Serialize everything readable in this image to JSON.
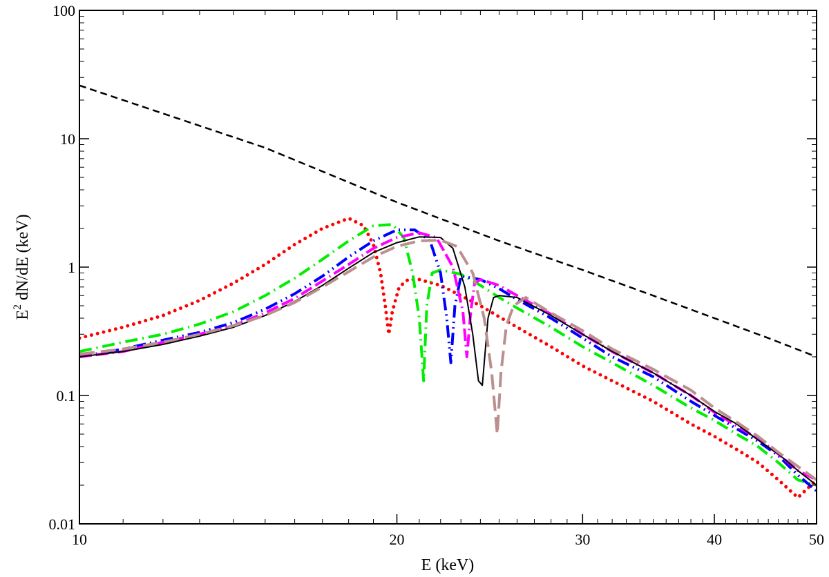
{
  "chart_data": {
    "type": "line",
    "title": "",
    "xlabel": "E (keV)",
    "ylabel_prefix": "E",
    "ylabel_sup": "2",
    "ylabel_suffix": " dN/dE (keV)",
    "xscale": "log",
    "yscale": "log",
    "xlim": [
      10,
      50
    ],
    "ylim": [
      0.01,
      100
    ],
    "xticks": [
      10,
      20,
      30,
      40,
      50
    ],
    "xtick_labels": [
      "10",
      "20",
      "30",
      "40",
      "50"
    ],
    "yticks": [
      0.01,
      0.1,
      1,
      10,
      100
    ],
    "ytick_labels": [
      "0.01",
      "0.1",
      "1",
      "10",
      "100"
    ],
    "legend": "none",
    "grid": false,
    "series": [
      {
        "name": "continuum",
        "color": "#000000",
        "style": "dashed",
        "x": [
          10,
          15,
          20,
          25,
          30,
          35,
          40,
          45,
          50
        ],
        "y": [
          26,
          8.5,
          3.2,
          1.6,
          0.95,
          0.6,
          0.4,
          0.28,
          0.2
        ]
      },
      {
        "name": "red dotted",
        "color": "#ff0000",
        "style": "dotted",
        "x": [
          10,
          11,
          12,
          13,
          14,
          15,
          16,
          17,
          18,
          18.6,
          19.0,
          19.3,
          19.5,
          19.65,
          19.8,
          20.1,
          20.5,
          21,
          22,
          23,
          24,
          25,
          26,
          28,
          30,
          32,
          35,
          38,
          40,
          42,
          44,
          46,
          48,
          50
        ],
        "y": [
          0.28,
          0.34,
          0.42,
          0.55,
          0.75,
          1.05,
          1.5,
          2.0,
          2.4,
          2.1,
          1.5,
          0.9,
          0.5,
          0.3,
          0.45,
          0.7,
          0.8,
          0.8,
          0.72,
          0.6,
          0.5,
          0.41,
          0.34,
          0.24,
          0.17,
          0.13,
          0.09,
          0.06,
          0.048,
          0.038,
          0.03,
          0.022,
          0.016,
          0.022
        ]
      },
      {
        "name": "green dash-dot",
        "color": "#00ee00",
        "style": "dashdot",
        "x": [
          10,
          11,
          12,
          13,
          14,
          15,
          16,
          17,
          18,
          19,
          19.8,
          20.3,
          20.7,
          21.0,
          21.2,
          21.35,
          21.6,
          22,
          23,
          24,
          25,
          26,
          28,
          30,
          32,
          35,
          38,
          40,
          42,
          44,
          46,
          48,
          50
        ],
        "y": [
          0.22,
          0.26,
          0.3,
          0.36,
          0.45,
          0.6,
          0.82,
          1.15,
          1.6,
          2.1,
          2.15,
          1.7,
          0.9,
          0.4,
          0.13,
          0.5,
          0.9,
          0.95,
          0.88,
          0.72,
          0.58,
          0.48,
          0.34,
          0.24,
          0.18,
          0.12,
          0.08,
          0.064,
          0.05,
          0.04,
          0.03,
          0.022,
          0.02
        ]
      },
      {
        "name": "blue dash-dot-dot",
        "color": "#0000ff",
        "style": "dashdotdot",
        "x": [
          10,
          11,
          12,
          13,
          14,
          15,
          16,
          17,
          18,
          19,
          20,
          20.8,
          21.5,
          22.0,
          22.3,
          22.5,
          22.7,
          23,
          24,
          25,
          26,
          28,
          30,
          32,
          35,
          38,
          40,
          42,
          44,
          46,
          48,
          50
        ],
        "y": [
          0.2,
          0.23,
          0.27,
          0.31,
          0.37,
          0.47,
          0.62,
          0.85,
          1.2,
          1.6,
          1.95,
          1.95,
          1.6,
          0.9,
          0.4,
          0.18,
          0.5,
          0.85,
          0.8,
          0.68,
          0.56,
          0.4,
          0.28,
          0.2,
          0.14,
          0.09,
          0.07,
          0.055,
          0.044,
          0.034,
          0.024,
          0.018
        ]
      },
      {
        "name": "magenta dash-dash-dot",
        "color": "#ff00ff",
        "style": "dashdashdot",
        "x": [
          10,
          11,
          12,
          13,
          14,
          15,
          16,
          17,
          18,
          19,
          20,
          21,
          21.8,
          22.6,
          23.1,
          23.3,
          23.5,
          23.7,
          24,
          25,
          26,
          28,
          30,
          32,
          35,
          38,
          40,
          42,
          44,
          46,
          48,
          50
        ],
        "y": [
          0.2,
          0.22,
          0.26,
          0.3,
          0.35,
          0.44,
          0.57,
          0.78,
          1.05,
          1.4,
          1.7,
          1.85,
          1.7,
          1.0,
          0.45,
          0.2,
          0.45,
          0.75,
          0.8,
          0.72,
          0.6,
          0.43,
          0.3,
          0.22,
          0.15,
          0.1,
          0.074,
          0.058,
          0.046,
          0.035,
          0.026,
          0.022
        ]
      },
      {
        "name": "black solid",
        "color": "#000000",
        "style": "solid",
        "x": [
          10,
          11,
          12,
          13,
          14,
          15,
          16,
          17,
          18,
          19,
          20,
          21,
          22,
          22.6,
          23.2,
          23.6,
          23.9,
          24.1,
          24.4,
          24.7,
          25,
          26,
          28,
          30,
          32,
          35,
          38,
          40,
          42,
          44,
          46,
          48,
          50
        ],
        "y": [
          0.2,
          0.22,
          0.25,
          0.29,
          0.34,
          0.42,
          0.54,
          0.72,
          0.98,
          1.3,
          1.55,
          1.72,
          1.7,
          1.4,
          0.7,
          0.3,
          0.13,
          0.12,
          0.4,
          0.58,
          0.6,
          0.58,
          0.42,
          0.3,
          0.22,
          0.15,
          0.1,
          0.075,
          0.06,
          0.045,
          0.035,
          0.026,
          0.02
        ]
      },
      {
        "name": "rosy-brown long dash",
        "color": "#bc8f8f",
        "style": "longdash",
        "x": [
          10,
          11,
          12,
          13,
          14,
          15,
          16,
          17,
          18,
          19,
          20,
          21,
          22,
          22.8,
          23.6,
          24.2,
          24.6,
          24.9,
          25.1,
          25.4,
          25.8,
          26.5,
          28,
          30,
          32,
          35,
          38,
          40,
          42,
          44,
          46,
          48,
          50
        ],
        "y": [
          0.21,
          0.23,
          0.26,
          0.3,
          0.35,
          0.42,
          0.53,
          0.7,
          0.92,
          1.2,
          1.45,
          1.6,
          1.62,
          1.45,
          0.9,
          0.4,
          0.15,
          0.05,
          0.15,
          0.35,
          0.5,
          0.58,
          0.44,
          0.32,
          0.23,
          0.16,
          0.11,
          0.08,
          0.062,
          0.048,
          0.036,
          0.028,
          0.022
        ]
      }
    ]
  }
}
